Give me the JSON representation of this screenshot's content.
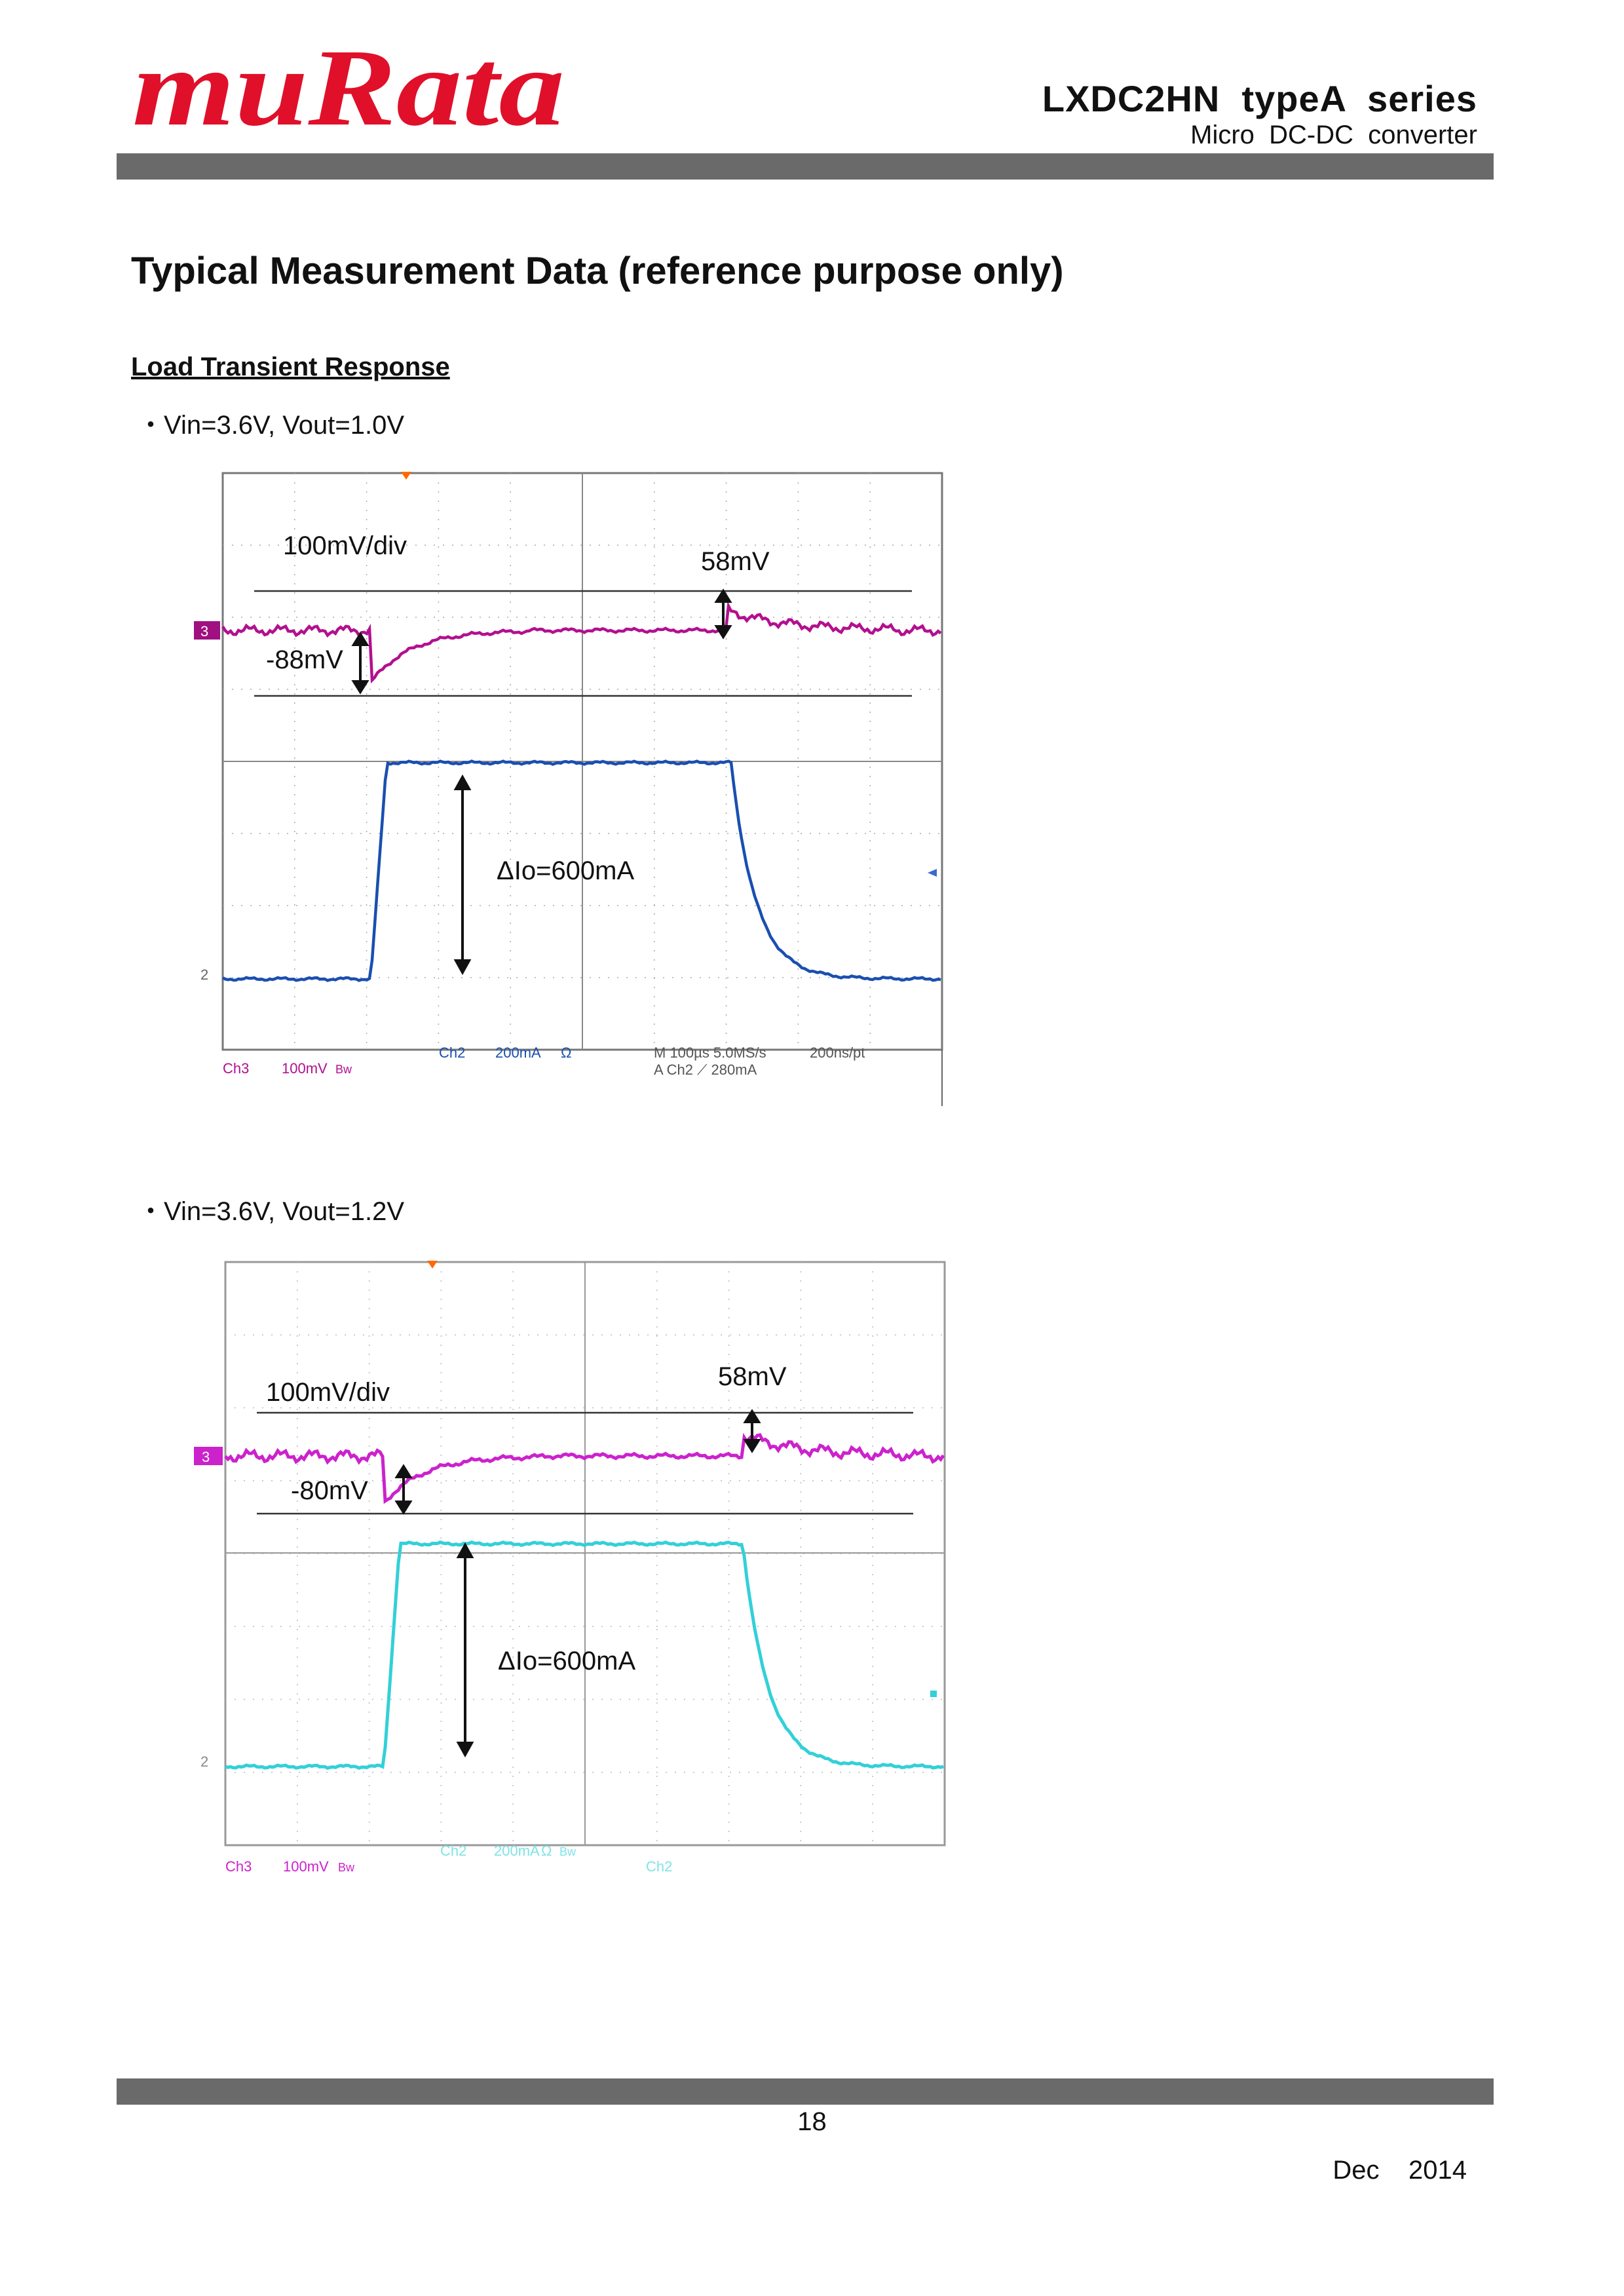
{
  "header": {
    "logo_text": "muRata",
    "title": "LXDC2HN  typeA  series",
    "subtitle": "Micro  DC-DC  converter",
    "colors": {
      "logo": "#e0102a",
      "bar": "#6a6a6a"
    }
  },
  "page_title": "Typical Measurement Data (reference purpose only)",
  "section_title": "Load Transient Response",
  "charts": [
    {
      "condition": "・Vin=3.6V, Vout=1.0V",
      "volt_div": "100mV/div",
      "overshoot": "58mV",
      "undershoot": "-88mV",
      "delta_io": "ΔIo=600mA",
      "ch3_marker": "3",
      "ch2_marker": "2",
      "readout_ch3": "Ch3",
      "readout_ch3_scale": "100mV",
      "readout_ch3_bw": "Bw",
      "readout_ch2": "Ch2",
      "readout_ch2_scale": "200mA",
      "readout_ch2_ohm": "Ω",
      "readout_time": "M 100µs 5.0MS/s",
      "readout_pt": "200ns/pt",
      "readout_trig": "A  Ch2  ⟋  280mA",
      "colors": {
        "vout": "#b2108f",
        "iout": "#1a4fb0"
      }
    },
    {
      "condition": "・Vin=3.6V, Vout=1.2V",
      "volt_div": "100mV/div",
      "overshoot": "58mV",
      "undershoot": "-80mV",
      "delta_io": "ΔIo=600mA",
      "ch3_marker": "3",
      "ch2_marker": "2",
      "readout_ch3": "Ch3",
      "readout_ch3_scale": "100mV",
      "readout_ch3_bw": "Bw",
      "readout_ch2": "Ch2",
      "readout_ch2_scale": "200mA",
      "readout_ch2_ohm": "Ω",
      "readout_ch2_bw": "Bw",
      "readout_ch2b": "Ch2",
      "colors": {
        "vout": "#cc22cc",
        "iout": "#33d0d8"
      }
    }
  ],
  "footer": {
    "page_number": "18",
    "date": "Dec    2014"
  }
}
